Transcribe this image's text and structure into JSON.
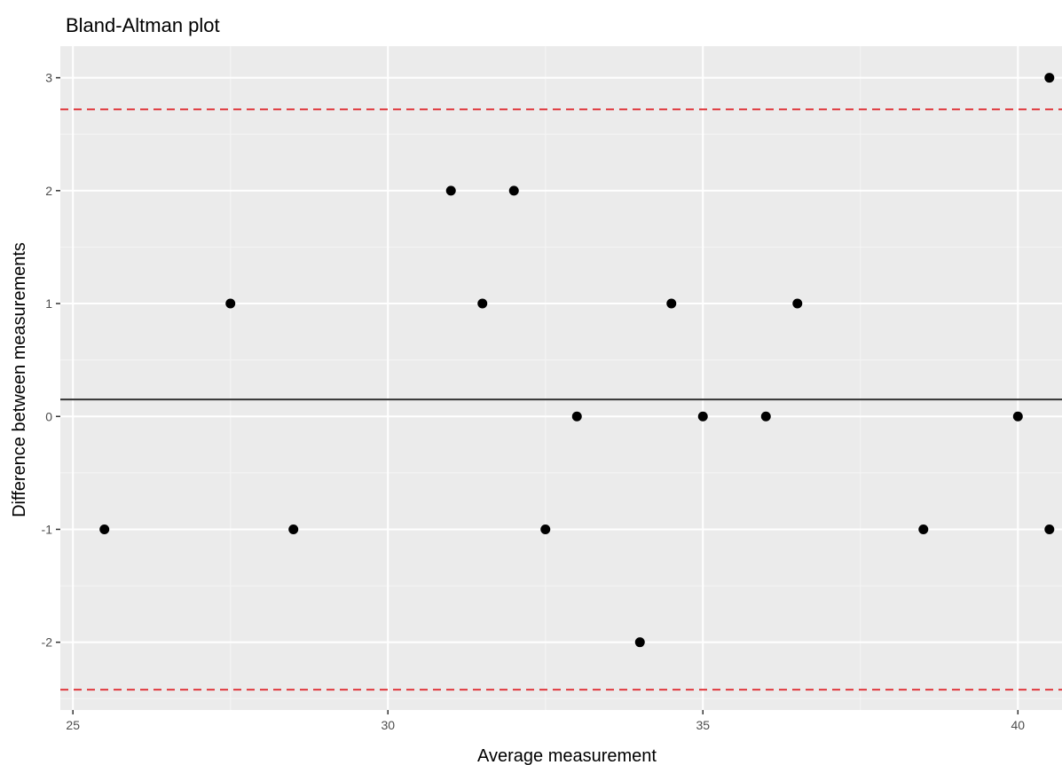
{
  "chart_data": {
    "type": "scatter",
    "title": "Bland-Altman plot",
    "xlabel": "Average measurement",
    "ylabel": "Difference between measurements",
    "xlim": [
      24.8,
      40.7
    ],
    "ylim": [
      -2.6,
      3.28
    ],
    "x_ticks": [
      25,
      30,
      35,
      40
    ],
    "y_ticks": [
      -2,
      -1,
      0,
      1,
      2,
      3
    ],
    "x_tick_labels": [
      "25",
      "30",
      "35",
      "40"
    ],
    "y_tick_labels": [
      "-2",
      "-1",
      "0",
      "1",
      "2",
      "3"
    ],
    "grid": true,
    "points": [
      {
        "x": 25.5,
        "y": -1
      },
      {
        "x": 27.5,
        "y": 1
      },
      {
        "x": 28.5,
        "y": -1
      },
      {
        "x": 31.0,
        "y": 2
      },
      {
        "x": 31.5,
        "y": 1
      },
      {
        "x": 32.0,
        "y": 2
      },
      {
        "x": 32.5,
        "y": -1
      },
      {
        "x": 33.0,
        "y": 0
      },
      {
        "x": 34.0,
        "y": -2
      },
      {
        "x": 34.5,
        "y": 1
      },
      {
        "x": 35.0,
        "y": 0
      },
      {
        "x": 36.0,
        "y": 0
      },
      {
        "x": 36.5,
        "y": 1
      },
      {
        "x": 38.5,
        "y": -1
      },
      {
        "x": 40.0,
        "y": 0
      },
      {
        "x": 40.5,
        "y": 3
      },
      {
        "x": 40.5,
        "y": -1
      }
    ],
    "reference_lines": [
      {
        "y": 0.15,
        "style": "solid",
        "color": "#333333"
      },
      {
        "y": 2.72,
        "style": "dashed",
        "color": "#e0393e"
      },
      {
        "y": -2.42,
        "style": "dashed",
        "color": "#e0393e"
      }
    ],
    "colors": {
      "panel": "#ebebeb",
      "grid_major": "#ffffff",
      "grid_minor": "#f5f5f5",
      "point": "#000000"
    }
  }
}
